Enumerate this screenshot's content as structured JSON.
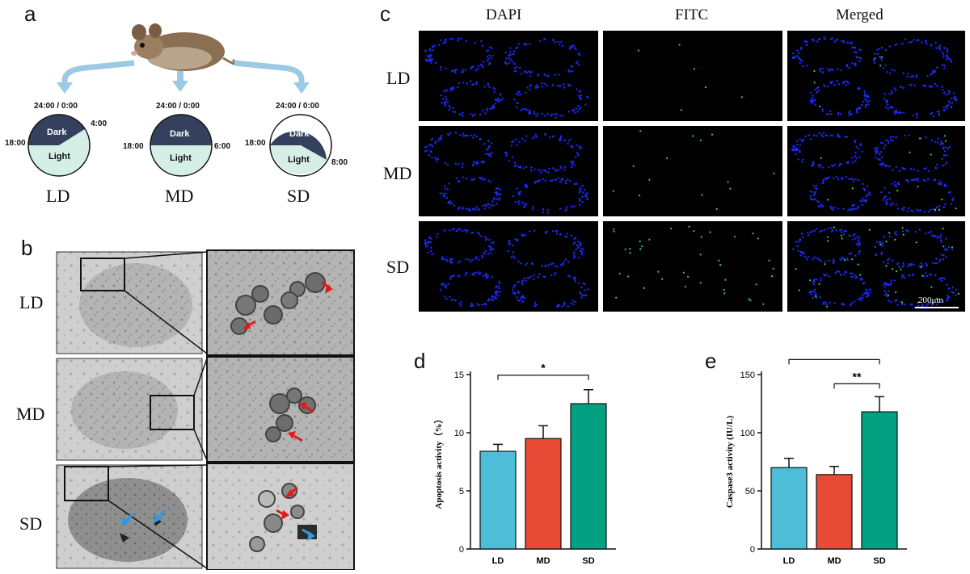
{
  "panels": {
    "a": "a",
    "b": "b",
    "c": "c",
    "d": "d",
    "e": "e"
  },
  "panel_a": {
    "clocks": [
      {
        "group": "LD",
        "top": "24:00 / 0:00",
        "left": "18:00",
        "right": "4:00",
        "dark": "Dark",
        "light": "Light"
      },
      {
        "group": "MD",
        "top": "24:00 / 0:00",
        "left": "18:00",
        "right": "6:00",
        "dark": "Dark",
        "light": "Light"
      },
      {
        "group": "SD",
        "top": "24:00 / 0:00",
        "left": "18:00",
        "right": "8:00",
        "dark": "Dark",
        "light": "Light"
      }
    ],
    "colors": {
      "dark": "#34405e",
      "light": "#d6efe6",
      "arrow": "#9cc9e3"
    }
  },
  "panel_b": {
    "rows": [
      "LD",
      "MD",
      "SD"
    ],
    "colors": {
      "red_arrow": "#e31a1c",
      "blue_arrow": "#3399dd"
    }
  },
  "panel_c": {
    "columns": [
      "DAPI",
      "FITC",
      "Merged"
    ],
    "rows": [
      "LD",
      "MD",
      "SD"
    ],
    "scale_bar": "200μm",
    "colors": {
      "dapi": "#1a2bff",
      "fitc": "#39d353"
    }
  },
  "chart_data": [
    {
      "type": "bar",
      "panel": "d",
      "categories": [
        "LD",
        "MD",
        "SD"
      ],
      "values": [
        8.4,
        9.5,
        12.5
      ],
      "errors": [
        0.6,
        1.1,
        1.2
      ],
      "ylabel": "Apoptosis activity（%）",
      "ylim": [
        0,
        15
      ],
      "yticks": [
        "0",
        "5",
        "10",
        "15"
      ],
      "colors": [
        "#4dbdd8",
        "#e84b35",
        "#03a082"
      ],
      "significance": [
        {
          "from": "LD",
          "to": "SD",
          "label": "*"
        }
      ]
    },
    {
      "type": "bar",
      "panel": "e",
      "categories": [
        "LD",
        "MD",
        "SD"
      ],
      "values": [
        70,
        64,
        118
      ],
      "errors": [
        8,
        7,
        13
      ],
      "ylabel": "Caspase3 activity (IU/L)",
      "ylim": [
        0,
        150
      ],
      "yticks": [
        "0",
        "50",
        "100",
        "150"
      ],
      "colors": [
        "#4dbdd8",
        "#e84b35",
        "#03a082"
      ],
      "significance": [
        {
          "from": "LD",
          "to": "SD",
          "label": "*"
        },
        {
          "from": "MD",
          "to": "SD",
          "label": "**"
        }
      ]
    }
  ]
}
